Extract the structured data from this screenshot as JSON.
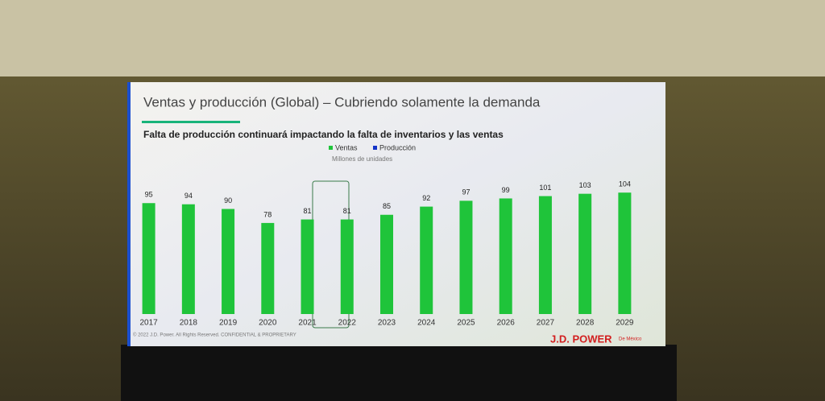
{
  "chart_data": {
    "type": "bar",
    "title": "Ventas y producción (Global) –  Cubriendo solamente la demanda",
    "subtitle": "Falta de producción continuará impactando la falta de inventarios y las ventas",
    "unit_label": "Millones de unidades",
    "categories": [
      "2017",
      "2018",
      "2019",
      "2020",
      "2021",
      "2022",
      "2023",
      "2024",
      "2025",
      "2026",
      "2027",
      "2028",
      "2029"
    ],
    "series": [
      {
        "name": "Ventas",
        "color": "#1fc43a",
        "values": [
          95,
          94,
          90,
          78,
          81,
          81,
          85,
          92,
          97,
          99,
          101,
          103,
          104
        ]
      },
      {
        "name": "Producción",
        "color": "#1433c8",
        "values": [
          null,
          null,
          null,
          null,
          null,
          null,
          null,
          null,
          null,
          null,
          null,
          null,
          null
        ]
      }
    ],
    "footer": "© 2022 J.D. Power. All Rights Reserved. CONFIDENTIAL & PROPRIETARY",
    "logo": "J.D. POWER",
    "logo_sub": "De México"
  }
}
